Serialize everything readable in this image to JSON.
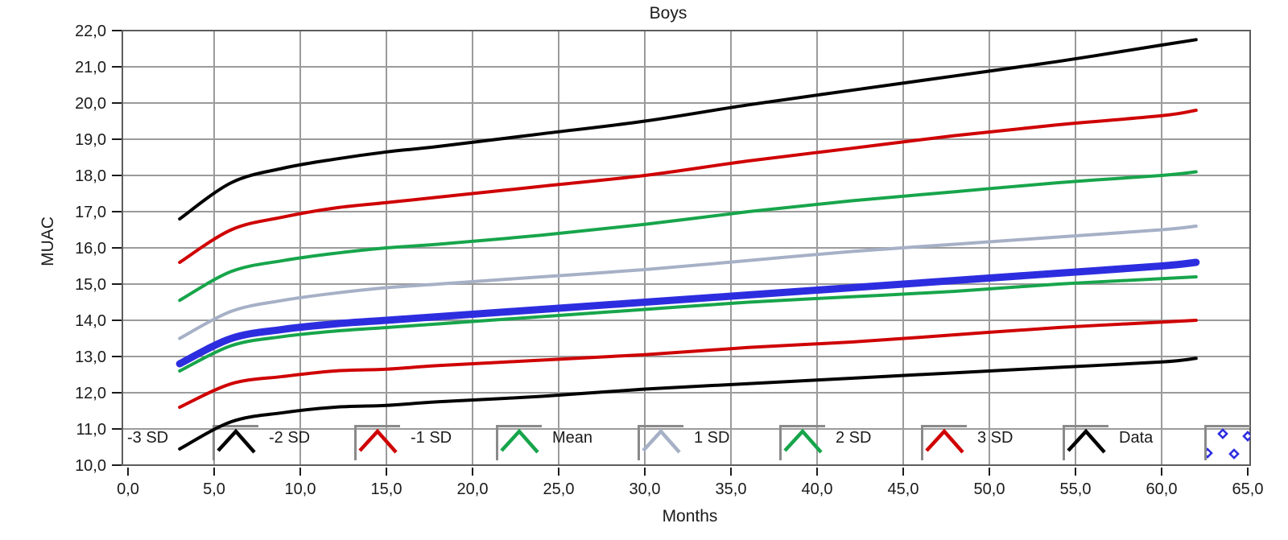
{
  "chart": {
    "title": "Boys",
    "x_axis": {
      "label": "Months",
      "min": 0,
      "max": 65,
      "step": 5,
      "tick_labels": [
        "0,0",
        "5,0",
        "10,0",
        "15,0",
        "20,0",
        "25,0",
        "30,0",
        "35,0",
        "40,0",
        "45,0",
        "50,0",
        "55,0",
        "60,0",
        "65,0"
      ]
    },
    "y_axis": {
      "label": "MUAC",
      "min": 10,
      "max": 22,
      "step": 1,
      "tick_labels": [
        "10,0",
        "11,0",
        "12,0",
        "13,0",
        "14,0",
        "15,0",
        "16,0",
        "17,0",
        "18,0",
        "19,0",
        "20,0",
        "21,0",
        "22,0"
      ]
    },
    "colors": {
      "background": "#ffffff",
      "grid": "#9b9b9b",
      "plot_border": "#5d5d5d",
      "tick": "#1b1b1b",
      "text": "#1b1b1b",
      "sd3": "#000000",
      "sd2": "#cf0000",
      "sd1": "#17a54b",
      "mean": "#a6b0c6",
      "data": "#2d2de0",
      "legend_box_border": "#8a8a8a"
    },
    "legend": [
      {
        "label": "-3 SD",
        "color": "#000000",
        "sample": "line"
      },
      {
        "label": "-2 SD",
        "color": "#cf0000",
        "sample": "line"
      },
      {
        "label": "-1 SD",
        "color": "#17a54b",
        "sample": "line"
      },
      {
        "label": "Mean",
        "color": "#a6b0c6",
        "sample": "line"
      },
      {
        "label": "1 SD",
        "color": "#17a54b",
        "sample": "line"
      },
      {
        "label": "2 SD",
        "color": "#cf0000",
        "sample": "line"
      },
      {
        "label": "3 SD",
        "color": "#000000",
        "sample": "line"
      },
      {
        "label": "Data",
        "color": "#2d2de0",
        "sample": "points"
      }
    ]
  },
  "chart_data": {
    "type": "line",
    "title": "Boys",
    "xlabel": "Months",
    "ylabel": "MUAC",
    "xlim": [
      0,
      65
    ],
    "ylim": [
      10,
      22
    ],
    "grid": true,
    "legend_position": "bottom-inside",
    "x_months": [
      3,
      6,
      9,
      12,
      15,
      18,
      24,
      30,
      36,
      42,
      48,
      54,
      60,
      62
    ],
    "series": [
      {
        "name": "3 SD",
        "color": "#000000",
        "width": 4,
        "values": [
          16.8,
          17.8,
          18.2,
          18.45,
          18.65,
          18.8,
          19.15,
          19.5,
          19.95,
          20.35,
          20.75,
          21.15,
          21.6,
          21.75
        ]
      },
      {
        "name": "2 SD",
        "color": "#cf0000",
        "width": 4,
        "values": [
          15.6,
          16.5,
          16.85,
          17.1,
          17.25,
          17.4,
          17.7,
          18.0,
          18.4,
          18.75,
          19.1,
          19.4,
          19.65,
          19.8
        ]
      },
      {
        "name": "1 SD",
        "color": "#17a54b",
        "width": 4,
        "values": [
          14.55,
          15.35,
          15.65,
          15.85,
          16.0,
          16.1,
          16.35,
          16.65,
          17.0,
          17.3,
          17.55,
          17.8,
          18.0,
          18.1
        ]
      },
      {
        "name": "Mean",
        "color": "#a6b0c6",
        "width": 4,
        "values": [
          13.5,
          14.25,
          14.55,
          14.75,
          14.9,
          15.0,
          15.2,
          15.4,
          15.65,
          15.9,
          16.1,
          16.3,
          16.5,
          16.6
        ]
      },
      {
        "name": "-1 SD",
        "color": "#17a54b",
        "width": 4,
        "values": [
          12.6,
          13.3,
          13.55,
          13.7,
          13.8,
          13.9,
          14.1,
          14.3,
          14.5,
          14.65,
          14.8,
          15.0,
          15.15,
          15.2
        ]
      },
      {
        "name": "-2 SD",
        "color": "#cf0000",
        "width": 4,
        "values": [
          11.6,
          12.25,
          12.45,
          12.6,
          12.65,
          12.75,
          12.9,
          13.05,
          13.25,
          13.4,
          13.6,
          13.8,
          13.95,
          14.0
        ]
      },
      {
        "name": "-3 SD",
        "color": "#000000",
        "width": 4,
        "values": [
          10.45,
          11.2,
          11.45,
          11.6,
          11.65,
          11.75,
          11.9,
          12.1,
          12.25,
          12.4,
          12.55,
          12.7,
          12.85,
          12.95
        ]
      },
      {
        "name": "Data",
        "color": "#2d2de0",
        "width": 9,
        "marker": "diamond-dense",
        "values": [
          12.8,
          13.5,
          13.75,
          13.9,
          14.0,
          14.1,
          14.3,
          14.5,
          14.7,
          14.9,
          15.1,
          15.3,
          15.5,
          15.6
        ]
      }
    ]
  }
}
